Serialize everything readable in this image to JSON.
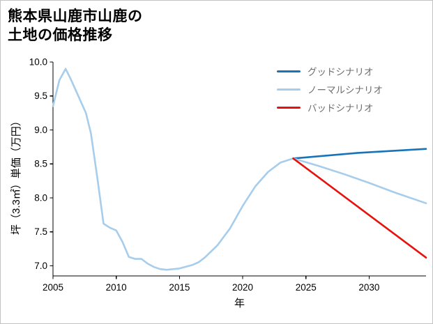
{
  "chart_data": {
    "type": "line",
    "title": "熊本県山鹿市山鹿の土地の価格推移",
    "title_lines": [
      "熊本県山鹿市山鹿の",
      "土地の価格推移"
    ],
    "xlabel": "年",
    "ylabel": "坪（3.3㎡）単価（万円）",
    "xlim": [
      2005,
      2034.5
    ],
    "ylim": [
      6.85,
      10.0
    ],
    "grid": false,
    "legend_position": "upper right",
    "axis_color": "#000000",
    "x_ticks": [
      {
        "value": 2005,
        "label": "2005"
      },
      {
        "value": 2010,
        "label": "2010"
      },
      {
        "value": 2015,
        "label": "2015"
      },
      {
        "value": 2020,
        "label": "2020"
      },
      {
        "value": 2025,
        "label": "2025"
      },
      {
        "value": 2030,
        "label": "2030"
      }
    ],
    "y_ticks": [
      {
        "value": 7.0,
        "label": "7.0"
      },
      {
        "value": 7.5,
        "label": "7.5"
      },
      {
        "value": 8.0,
        "label": "8.0"
      },
      {
        "value": 8.5,
        "label": "8.5"
      },
      {
        "value": 9.0,
        "label": "9.0"
      },
      {
        "value": 9.5,
        "label": "9.5"
      },
      {
        "value": 10.0,
        "label": "10.0"
      }
    ],
    "legend": [
      {
        "label": "グッドシナリオ",
        "color": "#1774b8"
      },
      {
        "label": "ノーマルシナリオ",
        "color": "#a6cdec"
      },
      {
        "label": "バッドシナリオ",
        "color": "#e8120c"
      }
    ],
    "series": [
      {
        "id": "history",
        "color": "#a6cdec",
        "width": 2.6,
        "points": [
          [
            2005,
            9.35
          ],
          [
            2005.5,
            9.73
          ],
          [
            2006,
            9.9
          ],
          [
            2006.4,
            9.75
          ],
          [
            2007,
            9.5
          ],
          [
            2007.6,
            9.25
          ],
          [
            2008,
            8.95
          ],
          [
            2008.5,
            8.3
          ],
          [
            2009,
            7.62
          ],
          [
            2009.5,
            7.56
          ],
          [
            2010,
            7.52
          ],
          [
            2010.5,
            7.35
          ],
          [
            2011,
            7.13
          ],
          [
            2011.5,
            7.1
          ],
          [
            2012,
            7.1
          ],
          [
            2012.5,
            7.03
          ],
          [
            2013,
            6.98
          ],
          [
            2013.5,
            6.95
          ],
          [
            2014,
            6.94
          ],
          [
            2015,
            6.96
          ],
          [
            2016,
            7.01
          ],
          [
            2016.5,
            7.05
          ],
          [
            2017,
            7.12
          ],
          [
            2018,
            7.3
          ],
          [
            2019,
            7.55
          ],
          [
            2020,
            7.88
          ],
          [
            2021,
            8.17
          ],
          [
            2022,
            8.38
          ],
          [
            2023,
            8.52
          ],
          [
            2024,
            8.58
          ]
        ]
      },
      {
        "id": "good",
        "label": "グッドシナリオ",
        "color": "#1774b8",
        "width": 2.6,
        "points": [
          [
            2024,
            8.58
          ],
          [
            2029,
            8.66
          ],
          [
            2034.5,
            8.72
          ]
        ]
      },
      {
        "id": "normal",
        "label": "ノーマルシナリオ",
        "color": "#a6cdec",
        "width": 2.6,
        "points": [
          [
            2024,
            8.58
          ],
          [
            2026,
            8.47
          ],
          [
            2028,
            8.35
          ],
          [
            2030,
            8.22
          ],
          [
            2032,
            8.08
          ],
          [
            2034.5,
            7.92
          ]
        ]
      },
      {
        "id": "bad",
        "label": "バッドシナリオ",
        "color": "#e8120c",
        "width": 2.6,
        "points": [
          [
            2024,
            8.58
          ],
          [
            2034.5,
            7.12
          ]
        ]
      }
    ]
  }
}
